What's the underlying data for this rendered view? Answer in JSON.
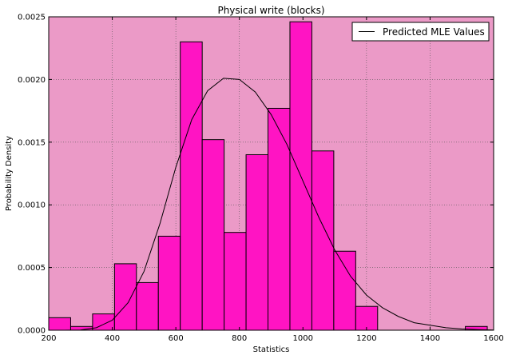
{
  "chart_data": {
    "type": "histogram",
    "title": "Physical write (blocks)",
    "xlabel": "Statistics",
    "ylabel": "Probability Density",
    "xlim": [
      200,
      1600
    ],
    "ylim": [
      0,
      0.0025
    ],
    "x_ticks": [
      "200",
      "400",
      "600",
      "800",
      "1000",
      "1200",
      "1400",
      "1600"
    ],
    "y_ticks": [
      "0.0000",
      "0.0005",
      "0.0010",
      "0.0015",
      "0.0020",
      "0.0025"
    ],
    "grid": true,
    "legend_position": "top-right",
    "bin_edges": [
      200,
      269,
      338,
      407,
      476,
      545,
      614,
      683,
      752,
      821,
      890,
      959,
      1028,
      1097,
      1166,
      1235,
      1304,
      1373,
      1442,
      1511,
      1580
    ],
    "densities": [
      0.0001,
      3e-05,
      0.00013,
      0.00053,
      0.00038,
      0.00075,
      0.0023,
      0.00152,
      0.00078,
      0.0014,
      0.00177,
      0.00246,
      0.00143,
      0.00063,
      0.00019,
      0,
      0,
      0,
      0,
      3e-05
    ],
    "series": [
      {
        "name": "Predicted MLE Values",
        "type": "line",
        "x": [
          200,
          250,
          300,
          350,
          400,
          450,
          500,
          550,
          600,
          650,
          700,
          750,
          800,
          850,
          900,
          950,
          1000,
          1050,
          1100,
          1150,
          1200,
          1250,
          1300,
          1350,
          1400,
          1450,
          1500,
          1550,
          1600
        ],
        "y": [
          0,
          0,
          2e-06,
          2e-05,
          8e-05,
          0.00022,
          0.00047,
          0.00085,
          0.0013,
          0.00168,
          0.00191,
          0.00201,
          0.002,
          0.0019,
          0.00172,
          0.00148,
          0.00119,
          0.0009,
          0.00064,
          0.00043,
          0.00028,
          0.00018,
          0.00011,
          6e-05,
          4e-05,
          2e-05,
          1e-05,
          5e-06,
          2e-06
        ]
      }
    ],
    "colors": {
      "plot_background": "#eb9ac7",
      "bar_fill": "#ff14c3",
      "bar_edge": "#000000",
      "line": "#000000",
      "grid": "#555555"
    }
  }
}
